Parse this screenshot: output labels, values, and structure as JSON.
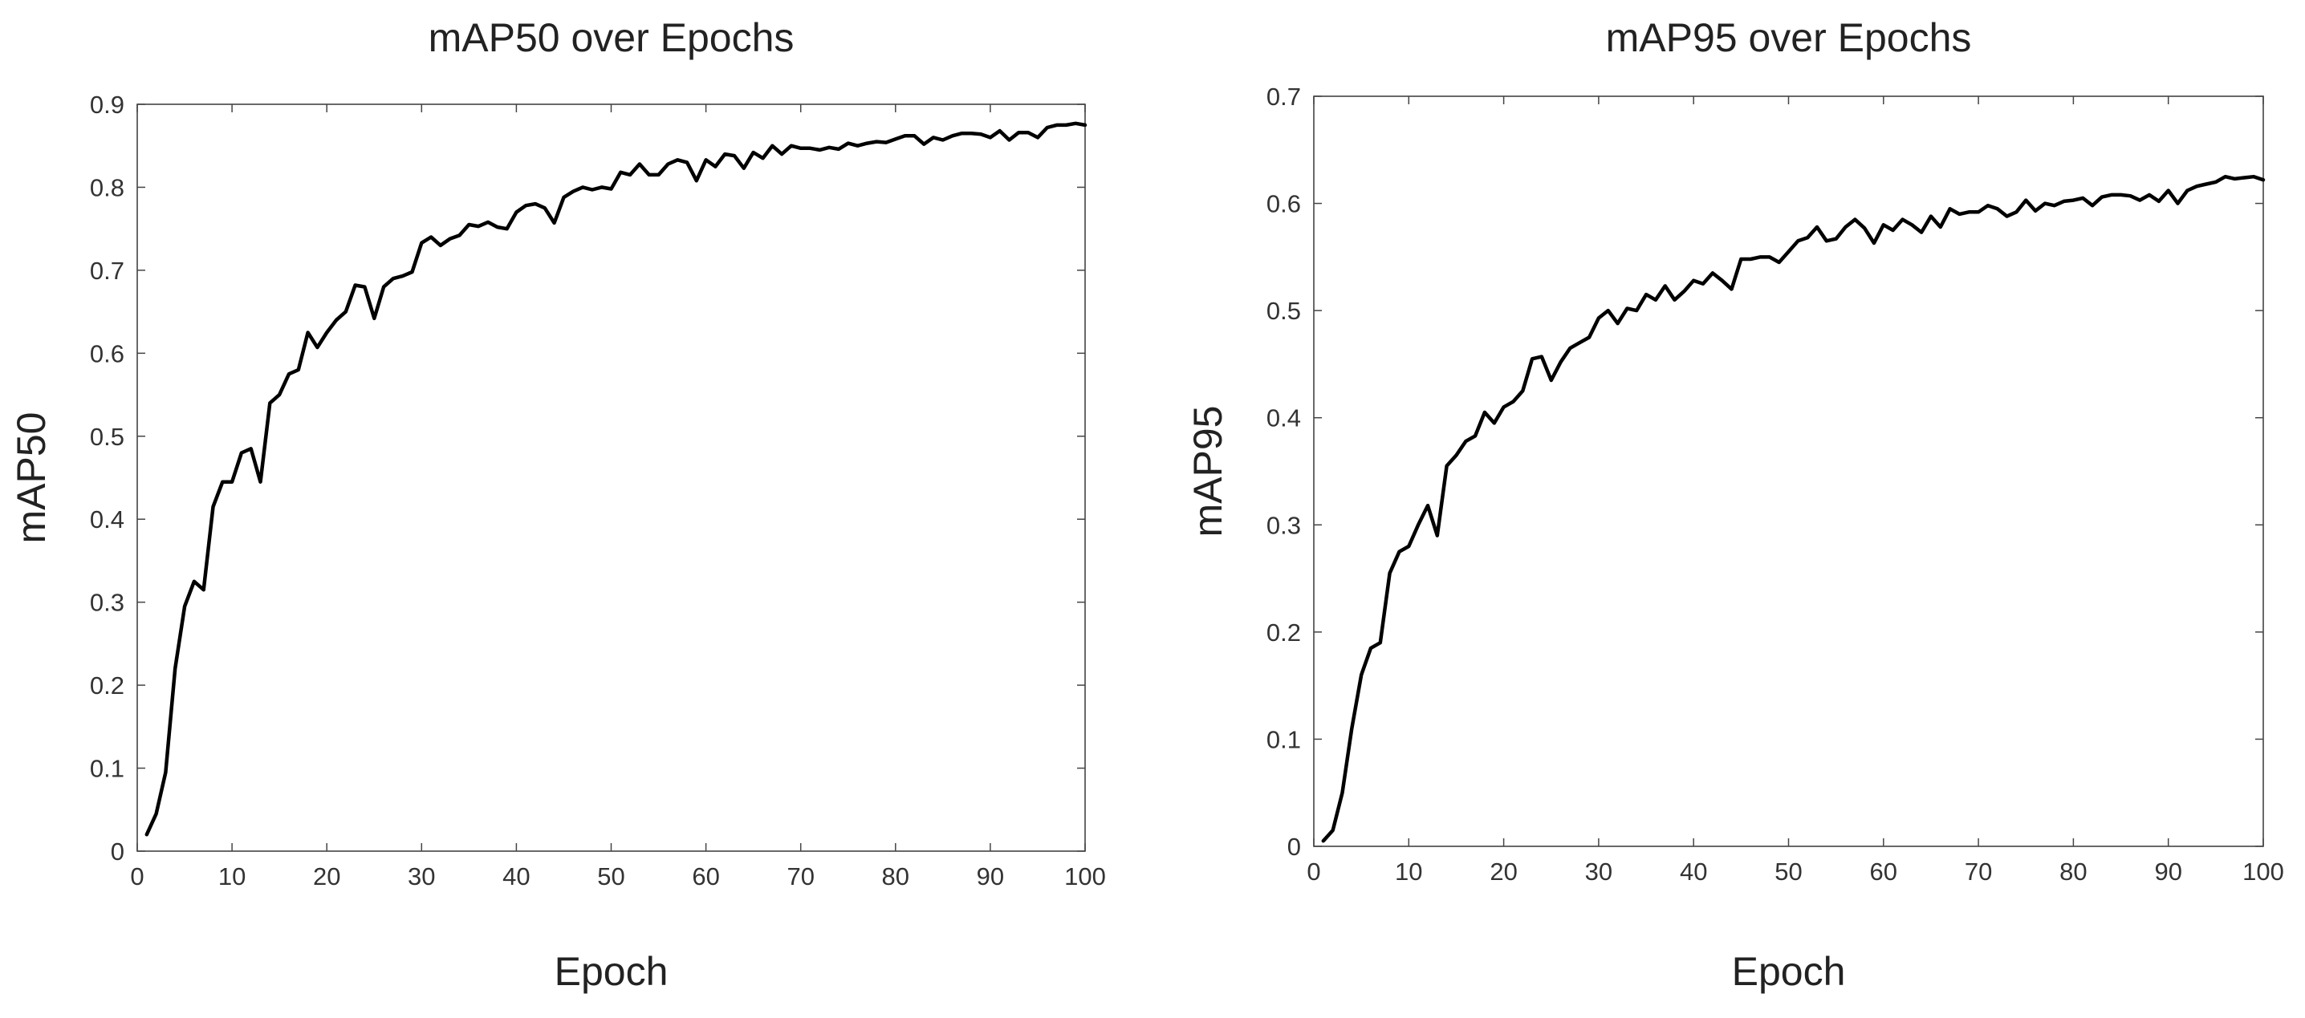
{
  "colors": {
    "background": "#ffffff",
    "line": "#000000",
    "axis": "#444444"
  },
  "chart_data": [
    {
      "type": "line",
      "title": "mAP50 over Epochs",
      "xlabel": "Epoch",
      "ylabel": "mAP50",
      "xlim": [
        0,
        100
      ],
      "ylim": [
        0,
        0.9
      ],
      "xticks": [
        0,
        10,
        20,
        30,
        40,
        50,
        60,
        70,
        80,
        90,
        100
      ],
      "yticks": [
        0,
        0.1,
        0.2,
        0.3,
        0.4,
        0.5,
        0.6,
        0.7,
        0.8,
        0.9
      ],
      "ytick_labels": [
        "0",
        "0.1",
        "0.2",
        "0.3",
        "0.4",
        "0.5",
        "0.6",
        "0.7",
        "0.8",
        "0.9"
      ],
      "grid": false,
      "series": [
        {
          "x": [
            1,
            2,
            3,
            4,
            5,
            6,
            7,
            8,
            9,
            10,
            11,
            12,
            13,
            14,
            15,
            16,
            17,
            18,
            19,
            20,
            21,
            22,
            23,
            24,
            25,
            26,
            27,
            28,
            29,
            30,
            31,
            32,
            33,
            34,
            35,
            36,
            37,
            38,
            39,
            40,
            41,
            42,
            43,
            44,
            45,
            46,
            47,
            48,
            49,
            50,
            51,
            52,
            53,
            54,
            55,
            56,
            57,
            58,
            59,
            60,
            61,
            62,
            63,
            64,
            65,
            66,
            67,
            68,
            69,
            70,
            71,
            72,
            73,
            74,
            75,
            76,
            77,
            78,
            79,
            80,
            81,
            82,
            83,
            84,
            85,
            86,
            87,
            88,
            89,
            90,
            91,
            92,
            93,
            94,
            95,
            96,
            97,
            98,
            99,
            100
          ],
          "y": [
            0.02,
            0.045,
            0.095,
            0.22,
            0.295,
            0.325,
            0.315,
            0.415,
            0.445,
            0.445,
            0.48,
            0.485,
            0.445,
            0.54,
            0.55,
            0.575,
            0.58,
            0.625,
            0.607,
            0.625,
            0.64,
            0.65,
            0.682,
            0.68,
            0.642,
            0.68,
            0.69,
            0.693,
            0.698,
            0.733,
            0.74,
            0.73,
            0.738,
            0.742,
            0.755,
            0.753,
            0.758,
            0.752,
            0.75,
            0.77,
            0.778,
            0.78,
            0.775,
            0.757,
            0.788,
            0.795,
            0.8,
            0.797,
            0.8,
            0.798,
            0.818,
            0.815,
            0.828,
            0.815,
            0.815,
            0.828,
            0.833,
            0.83,
            0.808,
            0.833,
            0.825,
            0.84,
            0.838,
            0.823,
            0.842,
            0.835,
            0.85,
            0.84,
            0.85,
            0.847,
            0.847,
            0.845,
            0.848,
            0.846,
            0.853,
            0.85,
            0.853,
            0.855,
            0.854,
            0.858,
            0.862,
            0.862,
            0.852,
            0.86,
            0.857,
            0.862,
            0.865,
            0.865,
            0.864,
            0.86,
            0.868,
            0.857,
            0.866,
            0.866,
            0.86,
            0.872,
            0.875,
            0.875,
            0.877,
            0.875
          ]
        }
      ]
    },
    {
      "type": "line",
      "title": "mAP95 over Epochs",
      "xlabel": "Epoch",
      "ylabel": "mAP95",
      "xlim": [
        0,
        100
      ],
      "ylim": [
        0,
        0.7
      ],
      "xticks": [
        0,
        10,
        20,
        30,
        40,
        50,
        60,
        70,
        80,
        90,
        100
      ],
      "yticks": [
        0,
        0.1,
        0.2,
        0.3,
        0.4,
        0.5,
        0.6,
        0.7
      ],
      "ytick_labels": [
        "0",
        "0.1",
        "0.2",
        "0.3",
        "0.4",
        "0.5",
        "0.6",
        "0.7"
      ],
      "grid": false,
      "series": [
        {
          "x": [
            1,
            2,
            3,
            4,
            5,
            6,
            7,
            8,
            9,
            10,
            11,
            12,
            13,
            14,
            15,
            16,
            17,
            18,
            19,
            20,
            21,
            22,
            23,
            24,
            25,
            26,
            27,
            28,
            29,
            30,
            31,
            32,
            33,
            34,
            35,
            36,
            37,
            38,
            39,
            40,
            41,
            42,
            43,
            44,
            45,
            46,
            47,
            48,
            49,
            50,
            51,
            52,
            53,
            54,
            55,
            56,
            57,
            58,
            59,
            60,
            61,
            62,
            63,
            64,
            65,
            66,
            67,
            68,
            69,
            70,
            71,
            72,
            73,
            74,
            75,
            76,
            77,
            78,
            79,
            80,
            81,
            82,
            83,
            84,
            85,
            86,
            87,
            88,
            89,
            90,
            91,
            92,
            93,
            94,
            95,
            96,
            97,
            98,
            99,
            100
          ],
          "y": [
            0.005,
            0.015,
            0.05,
            0.11,
            0.16,
            0.185,
            0.19,
            0.255,
            0.275,
            0.28,
            0.3,
            0.318,
            0.29,
            0.355,
            0.365,
            0.378,
            0.383,
            0.405,
            0.395,
            0.41,
            0.415,
            0.425,
            0.455,
            0.457,
            0.435,
            0.452,
            0.465,
            0.47,
            0.475,
            0.493,
            0.5,
            0.488,
            0.502,
            0.5,
            0.515,
            0.51,
            0.523,
            0.51,
            0.518,
            0.528,
            0.525,
            0.535,
            0.528,
            0.52,
            0.548,
            0.548,
            0.55,
            0.55,
            0.545,
            0.555,
            0.565,
            0.568,
            0.578,
            0.565,
            0.567,
            0.578,
            0.585,
            0.577,
            0.563,
            0.58,
            0.575,
            0.585,
            0.58,
            0.573,
            0.588,
            0.578,
            0.595,
            0.59,
            0.592,
            0.592,
            0.598,
            0.595,
            0.588,
            0.592,
            0.603,
            0.593,
            0.6,
            0.598,
            0.602,
            0.603,
            0.605,
            0.598,
            0.606,
            0.608,
            0.608,
            0.607,
            0.603,
            0.608,
            0.602,
            0.612,
            0.6,
            0.612,
            0.616,
            0.618,
            0.62,
            0.625,
            0.623,
            0.624,
            0.625,
            0.622
          ]
        }
      ]
    }
  ]
}
